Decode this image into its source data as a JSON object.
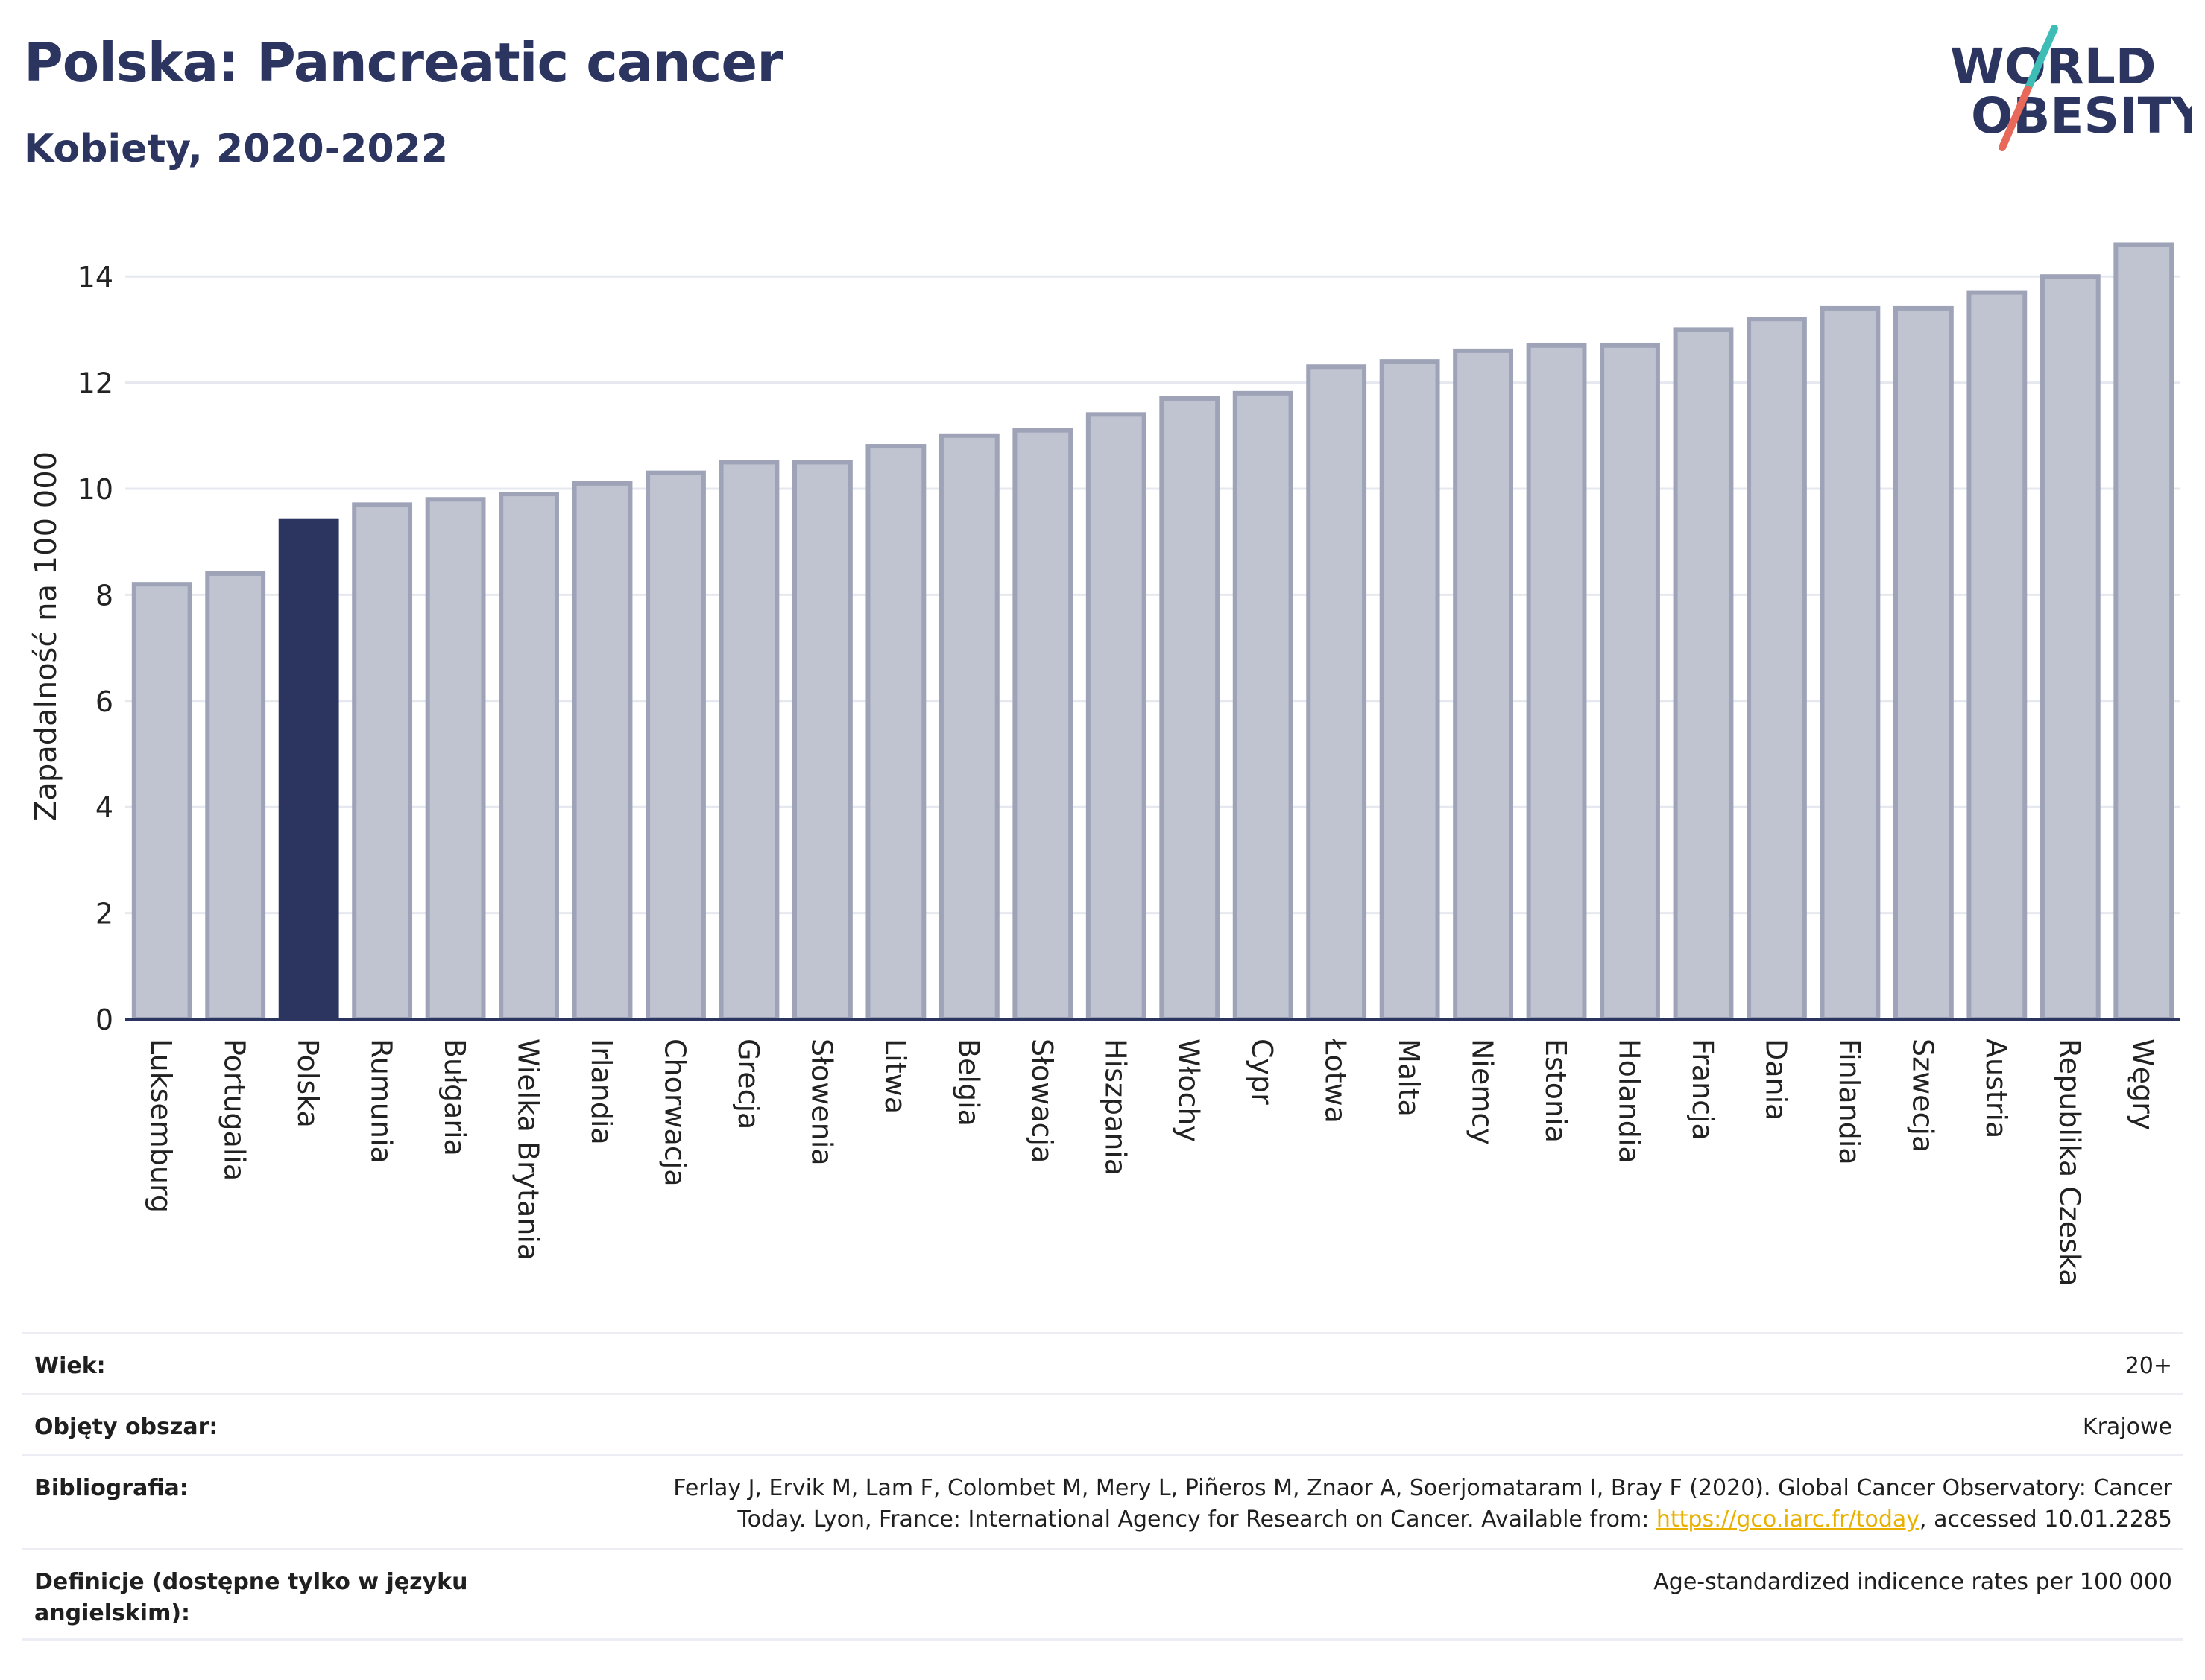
{
  "header": {
    "title": "Polska: Pancreatic cancer",
    "subtitle": "Kobiety, 2020-2022"
  },
  "logo": {
    "line1": "WORLD",
    "line2": "OBESITY",
    "slash_colors": [
      "#3dbdb6",
      "#e8685a"
    ]
  },
  "colors": {
    "bar_default": "#c0c3d0",
    "bar_border": "#9ea3b8",
    "bar_highlight": "#2b3560",
    "grid": "#e6e8ef",
    "axis": "#2b3560"
  },
  "chart_data": {
    "type": "bar",
    "ylabel": "Zapadalność na 100 000",
    "ylim": [
      0,
      15
    ],
    "yticks": [
      0,
      2,
      4,
      6,
      8,
      10,
      12,
      14
    ],
    "grid": true,
    "highlight": "Polska",
    "categories": [
      "Luksemburg",
      "Portugalia",
      "Polska",
      "Rumunia",
      "Bułgaria",
      "Wielka Brytania",
      "Irlandia",
      "Chorwacja",
      "Grecja",
      "Słowenia",
      "Litwa",
      "Belgia",
      "Słowacja",
      "Hiszpania",
      "Włochy",
      "Cypr",
      "Łotwa",
      "Malta",
      "Niemcy",
      "Estonia",
      "Holandia",
      "Francja",
      "Dania",
      "Finlandia",
      "Szwecja",
      "Austria",
      "Republika Czeska",
      "Węgry"
    ],
    "values": [
      8.2,
      8.4,
      9.4,
      9.7,
      9.8,
      9.9,
      10.1,
      10.3,
      10.5,
      10.5,
      10.8,
      11.0,
      11.1,
      11.4,
      11.7,
      11.8,
      12.3,
      12.4,
      12.6,
      12.7,
      12.7,
      13.0,
      13.2,
      13.4,
      13.4,
      13.7,
      14.0,
      14.6
    ]
  },
  "info": {
    "age_label": "Wiek:",
    "age_value": "20+",
    "area_label": "Objęty obszar:",
    "area_value": "Krajowe",
    "bib_label": "Bibliografia:",
    "bib_line1": "Ferlay J, Ervik M, Lam F, Colombet M, Mery L, Piñeros M, Znaor A, Soerjomataram I, Bray F (2020). Global Cancer Observatory: Cancer",
    "bib_line2_pre": "Today. Lyon, France: International Agency for Research on Cancer. Available from: ",
    "bib_link": "https://gco.iarc.fr/today",
    "bib_line2_post": ", accessed 10.01.2285",
    "def_label": "Definicje (dostępne tylko w języku angielskim):",
    "def_value": "Age-standardized indicence rates per 100 000"
  }
}
